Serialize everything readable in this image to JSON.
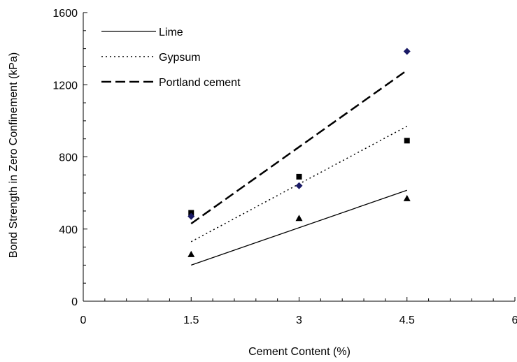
{
  "chart_data": {
    "type": "scatter",
    "xlabel": "Cement Content (%)",
    "ylabel": "Bond Strength in Zero Confinement (kPa)",
    "xlim": [
      0,
      6
    ],
    "ylim": [
      0,
      1600
    ],
    "x_ticks": [
      0,
      1.5,
      3,
      4.5,
      6
    ],
    "x_tick_labels": [
      "0",
      "1.5",
      "3",
      "4.5",
      "6"
    ],
    "y_ticks": [
      0,
      400,
      800,
      1200,
      1600
    ],
    "y_tick_labels": [
      "0",
      "400",
      "800",
      "1200",
      "1600"
    ],
    "grid": false,
    "legend": "top-left",
    "series": [
      {
        "name": "Lime",
        "line_style": "solid",
        "marker": "triangle",
        "color": "#000000",
        "points": [
          [
            1.5,
            260
          ],
          [
            3,
            460
          ],
          [
            4.5,
            570
          ]
        ],
        "trend": [
          [
            1.5,
            200
          ],
          [
            4.5,
            615
          ]
        ]
      },
      {
        "name": "Gypsum",
        "line_style": "dotted",
        "marker": "square",
        "color": "#000000",
        "points": [
          [
            1.5,
            490
          ],
          [
            3,
            690
          ],
          [
            4.5,
            890
          ]
        ],
        "trend": [
          [
            1.5,
            330
          ],
          [
            4.5,
            970
          ]
        ]
      },
      {
        "name": "Portland cement",
        "line_style": "dashed",
        "marker": "diamond",
        "color": "#1a1a66",
        "points": [
          [
            1.5,
            470
          ],
          [
            3,
            640
          ],
          [
            4.5,
            1385
          ]
        ],
        "trend": [
          [
            1.5,
            430
          ],
          [
            4.5,
            1280
          ]
        ]
      }
    ]
  }
}
